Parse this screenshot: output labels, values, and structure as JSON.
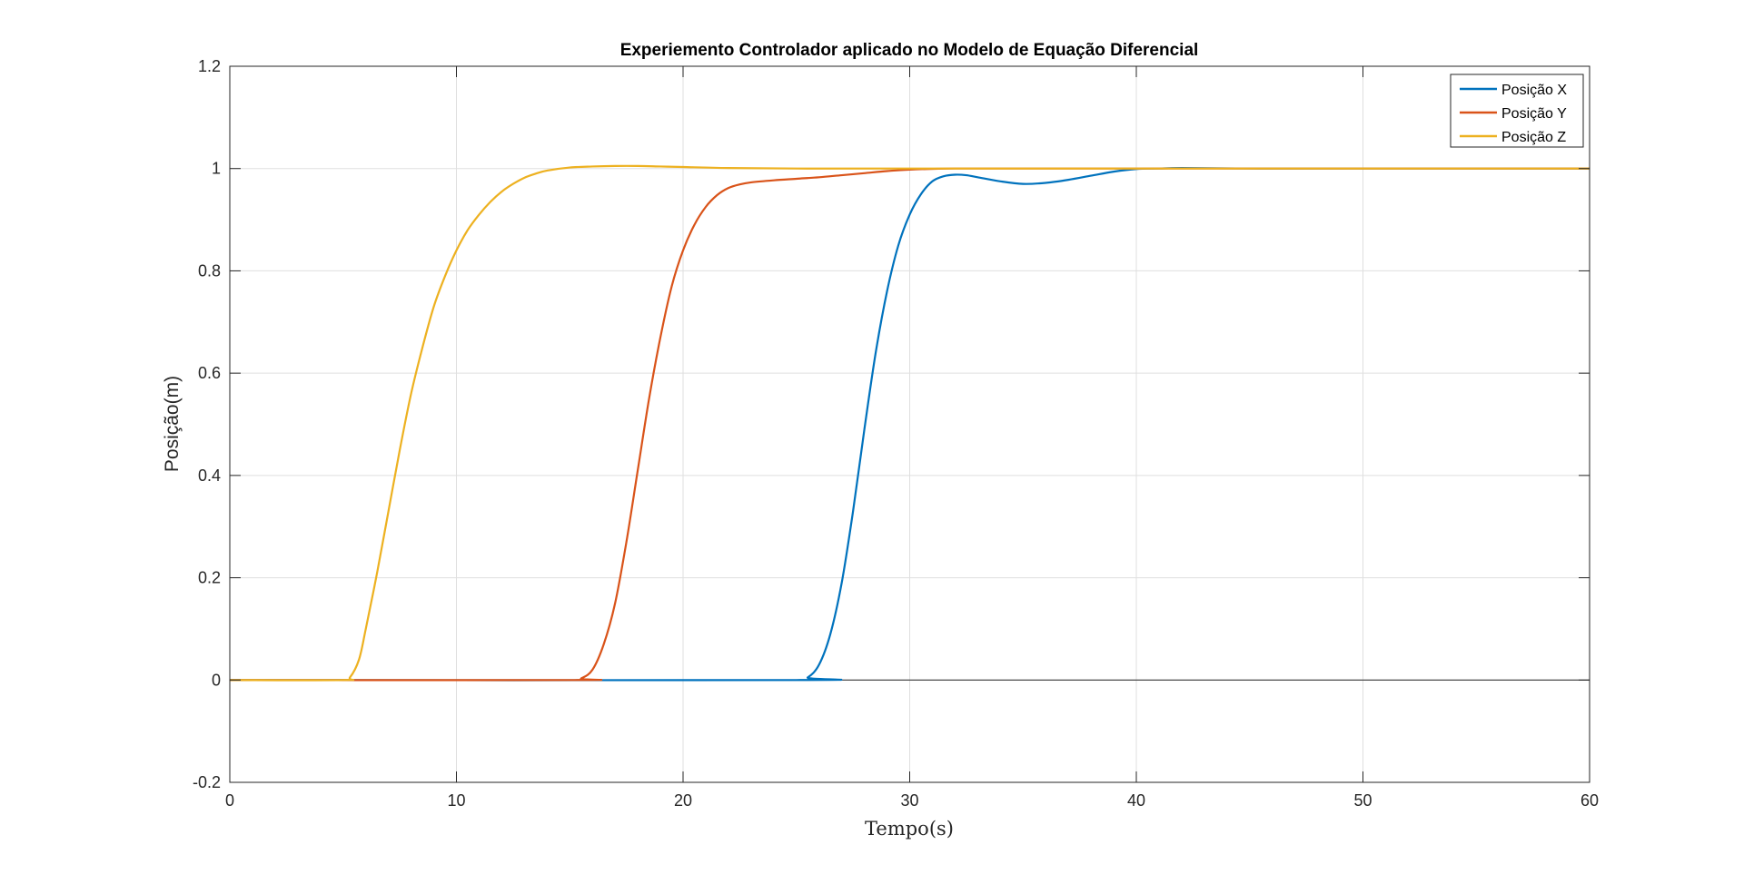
{
  "chart_data": {
    "type": "line",
    "title": "Experiemento Controlador aplicado no Modelo de Equação Diferencial",
    "xlabel": "Tempo(s)",
    "ylabel": "Posição(m)",
    "xlim": [
      0,
      60
    ],
    "ylim": [
      -0.2,
      1.2
    ],
    "xticks": [
      0,
      10,
      20,
      30,
      40,
      50,
      60
    ],
    "yticks": [
      -0.2,
      0,
      0.2,
      0.4,
      0.6,
      0.8,
      1,
      1.2
    ],
    "xtick_labels": [
      "0",
      "10",
      "20",
      "30",
      "40",
      "50",
      "60"
    ],
    "ytick_labels": [
      "-0.2",
      "0",
      "0.2",
      "0.4",
      "0.6",
      "0.8",
      "1",
      "1.2"
    ],
    "grid": true,
    "legend_position": "top-right",
    "series": [
      {
        "name": "Posição X",
        "color": "#0072BD",
        "x": [
          0,
          25,
          25.5,
          26,
          26.5,
          27,
          27.5,
          28,
          28.5,
          29,
          29.5,
          30,
          30.5,
          31,
          31.5,
          32,
          32.5,
          33,
          34,
          35,
          36,
          37,
          38,
          39,
          40,
          41,
          42,
          45,
          50,
          60
        ],
        "y": [
          0,
          0,
          0.005,
          0.03,
          0.09,
          0.19,
          0.33,
          0.49,
          0.64,
          0.76,
          0.85,
          0.91,
          0.95,
          0.975,
          0.985,
          0.988,
          0.987,
          0.983,
          0.975,
          0.97,
          0.972,
          0.978,
          0.986,
          0.994,
          0.999,
          1.0,
          1.001,
          1.0,
          1.0,
          1.0
        ]
      },
      {
        "name": "Posição Y",
        "color": "#D95319",
        "x": [
          0,
          15.2,
          15.5,
          16,
          16.5,
          17,
          17.5,
          18,
          18.5,
          19,
          19.5,
          20,
          20.5,
          21,
          21.5,
          22,
          22.5,
          23,
          24,
          25,
          26,
          27,
          28,
          29,
          30,
          32,
          35,
          40,
          60
        ],
        "y": [
          0,
          0,
          0.003,
          0.02,
          0.07,
          0.15,
          0.27,
          0.41,
          0.55,
          0.67,
          0.77,
          0.84,
          0.89,
          0.925,
          0.948,
          0.962,
          0.969,
          0.973,
          0.977,
          0.98,
          0.983,
          0.987,
          0.991,
          0.995,
          0.998,
          1.0,
          1.0,
          1.0,
          1.0
        ]
      },
      {
        "name": "Posição Z",
        "color": "#EDB120",
        "x": [
          0,
          5,
          5.3,
          5.7,
          6,
          6.5,
          7,
          7.5,
          8,
          8.5,
          9,
          9.5,
          10,
          10.5,
          11,
          11.5,
          12,
          12.5,
          13,
          13.5,
          14,
          15,
          16,
          17,
          18,
          19,
          20,
          22,
          25,
          30,
          40,
          60
        ],
        "y": [
          0,
          0,
          0.005,
          0.04,
          0.1,
          0.21,
          0.33,
          0.45,
          0.56,
          0.65,
          0.73,
          0.79,
          0.84,
          0.88,
          0.91,
          0.935,
          0.955,
          0.97,
          0.982,
          0.99,
          0.996,
          1.002,
          1.004,
          1.005,
          1.005,
          1.004,
          1.003,
          1.001,
          1.0,
          1.0,
          1.0,
          1.0
        ]
      }
    ]
  }
}
